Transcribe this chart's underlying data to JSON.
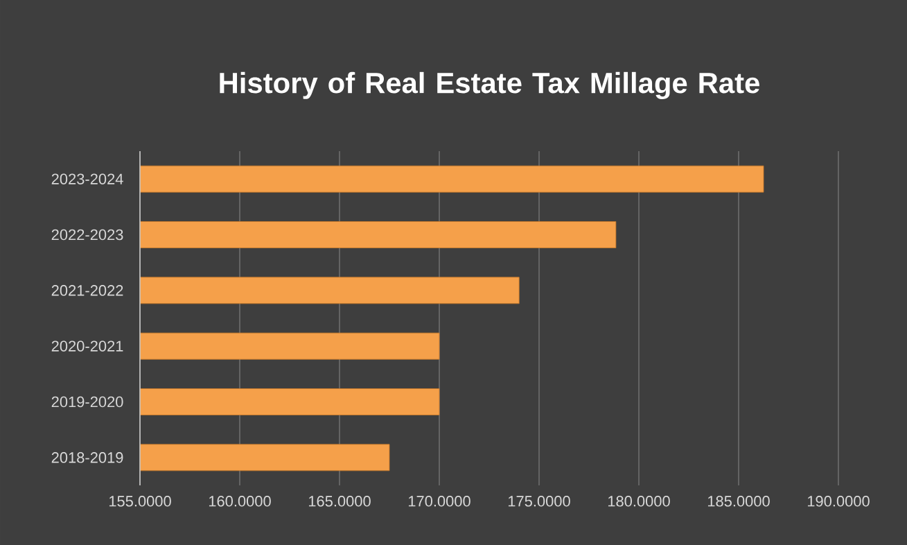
{
  "chart_data": {
    "type": "bar",
    "orientation": "horizontal",
    "title": "History of Real Estate Tax Millage Rate",
    "categories": [
      "2023-2024",
      "2022-2023",
      "2021-2022",
      "2020-2021",
      "2019-2020",
      "2018-2019"
    ],
    "values": [
      186.25,
      178.85,
      174.0,
      170.0,
      170.0,
      167.5
    ],
    "color": "#f5a04a",
    "xlim": [
      155,
      190
    ],
    "xticks": [
      {
        "value": 155,
        "label": "155.0000"
      },
      {
        "value": 160,
        "label": "160.0000"
      },
      {
        "value": 165,
        "label": "165.0000"
      },
      {
        "value": 170,
        "label": "170.0000"
      },
      {
        "value": 175,
        "label": "175.0000"
      },
      {
        "value": 180,
        "label": "180.0000"
      },
      {
        "value": 185,
        "label": "185.0000"
      },
      {
        "value": 190,
        "label": "190.0000"
      }
    ],
    "grid": "x"
  }
}
